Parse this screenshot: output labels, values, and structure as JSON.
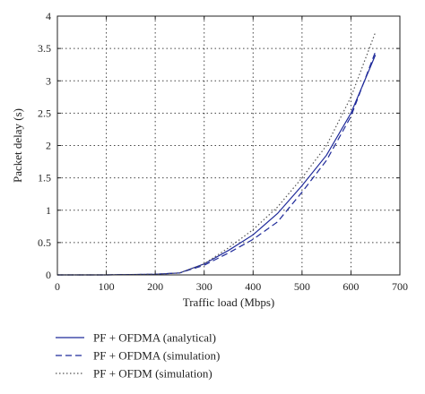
{
  "chart_data": {
    "type": "line",
    "xlabel": "Traffic load (Mbps)",
    "ylabel": "Packet delay (s)",
    "xlim": [
      0,
      700
    ],
    "ylim": [
      0,
      4
    ],
    "xticks": [
      0,
      100,
      200,
      300,
      400,
      500,
      600,
      700
    ],
    "yticks": [
      0,
      0.5,
      1,
      1.5,
      2,
      2.5,
      3,
      3.5,
      4
    ],
    "ytick_labels": [
      "0",
      "0.5",
      "1",
      "1.5",
      "2",
      "2.5",
      "3",
      "3.5",
      "4"
    ],
    "grid": true,
    "legend_position": "bottom-left-below-plot",
    "series": [
      {
        "name": "PF + OFDMA (analytical)",
        "style": "solid",
        "color": "#1f2a9a",
        "x": [
          0,
          50,
          100,
          150,
          200,
          250,
          300,
          350,
          400,
          450,
          500,
          550,
          600,
          650
        ],
        "y": [
          0.0,
          0.0,
          0.0,
          0.005,
          0.01,
          0.03,
          0.17,
          0.38,
          0.62,
          0.95,
          1.38,
          1.85,
          2.5,
          3.4
        ]
      },
      {
        "name": "PF + OFDMA (simulation)",
        "style": "dashed",
        "color": "#1f2a9a",
        "x": [
          0,
          50,
          100,
          150,
          200,
          250,
          300,
          350,
          400,
          450,
          500,
          550,
          600,
          650
        ],
        "y": [
          0.0,
          0.0,
          0.0,
          0.005,
          0.01,
          0.03,
          0.15,
          0.34,
          0.55,
          0.82,
          1.28,
          1.77,
          2.45,
          3.45
        ]
      },
      {
        "name": "PF + OFDM (simulation)",
        "style": "dotted",
        "color": "#555555",
        "x": [
          0,
          50,
          100,
          150,
          200,
          250,
          300,
          350,
          400,
          450,
          500,
          550,
          600,
          650
        ],
        "y": [
          0.0,
          0.0,
          0.0,
          0.005,
          0.01,
          0.03,
          0.17,
          0.42,
          0.7,
          1.05,
          1.5,
          2.0,
          2.75,
          3.75
        ]
      }
    ]
  }
}
